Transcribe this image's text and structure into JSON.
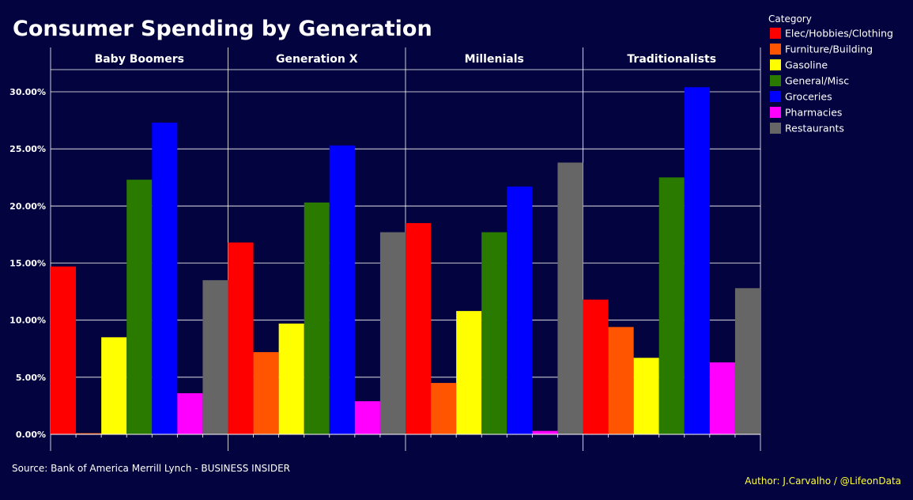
{
  "chart_data": {
    "type": "bar",
    "title": "Consumer Spending by Generation",
    "facets": [
      "Baby Boomers",
      "Generation X",
      "Millenials",
      "Traditionalists"
    ],
    "categories": [
      "Elec/Hobbies/Clothing",
      "Furniture/Building",
      "Gasoline",
      "General/Misc",
      "Groceries",
      "Pharmacies",
      "Restaurants"
    ],
    "colors": [
      "#ff0000",
      "#ff5500",
      "#ffff00",
      "#2a7a00",
      "#0000ff",
      "#ff00ff",
      "#666666"
    ],
    "series": [
      {
        "name": "Baby Boomers",
        "values": [
          14.7,
          0.1,
          8.5,
          22.3,
          27.3,
          3.6,
          13.5
        ]
      },
      {
        "name": "Generation X",
        "values": [
          16.8,
          7.2,
          9.7,
          20.3,
          25.3,
          2.9,
          17.7
        ]
      },
      {
        "name": "Millenials",
        "values": [
          18.5,
          4.5,
          10.8,
          17.7,
          21.7,
          0.3,
          23.8
        ]
      },
      {
        "name": "Traditionalists",
        "values": [
          11.8,
          9.4,
          6.7,
          22.5,
          30.4,
          6.3,
          12.8
        ]
      }
    ],
    "yticks": [
      "0.00%",
      "5.00%",
      "10.00%",
      "15.00%",
      "20.00%",
      "25.00%",
      "30.00%"
    ],
    "ylim": [
      0,
      32
    ],
    "grid": true,
    "legend": {
      "title": "Category",
      "position": "right"
    },
    "source": "Source: Bank of America Merrill Lynch - BUSINESS INSIDER",
    "author": "Author: J.Carvalho / @LifeonData",
    "author_color": "#ffff33"
  }
}
